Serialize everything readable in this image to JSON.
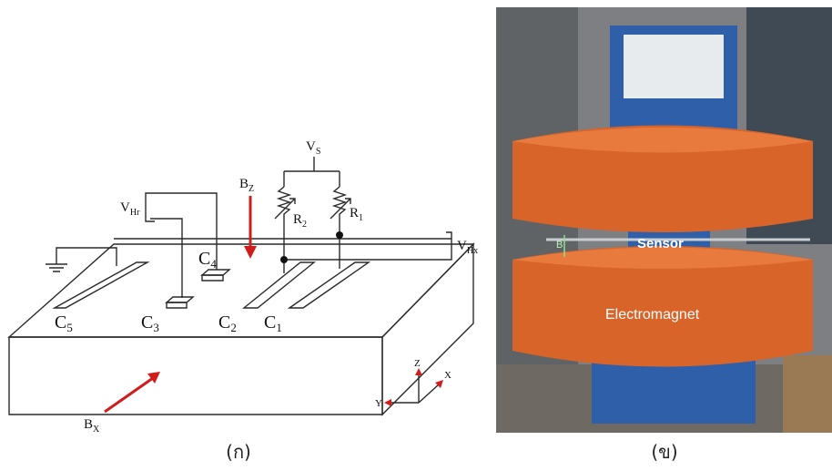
{
  "panel_a": {
    "labels": {
      "vs": {
        "text": "V",
        "sub": "S"
      },
      "bz": {
        "text": "B",
        "sub": "Z"
      },
      "vhr": {
        "text": "V",
        "sub": "Hr"
      },
      "r2": {
        "text": "R",
        "sub": "2"
      },
      "r1": {
        "text": "R",
        "sub": "1"
      },
      "vhx": {
        "text": "V",
        "sub": "Hx"
      },
      "c4": {
        "text": "C",
        "sub": "4"
      },
      "c5": {
        "text": "C",
        "sub": "5"
      },
      "c3": {
        "text": "C",
        "sub": "3"
      },
      "c2": {
        "text": "C",
        "sub": "2"
      },
      "c1": {
        "text": "C",
        "sub": "1"
      },
      "bx": {
        "text": "B",
        "sub": "X"
      },
      "axis_z": "Z",
      "axis_x": "X",
      "axis_y": "Y"
    },
    "caption": "(ก)"
  },
  "panel_b": {
    "labels": {
      "sensor": "Sensor",
      "electromagnet": "Electromagnet",
      "b": "B"
    },
    "caption": "(ข)"
  }
}
